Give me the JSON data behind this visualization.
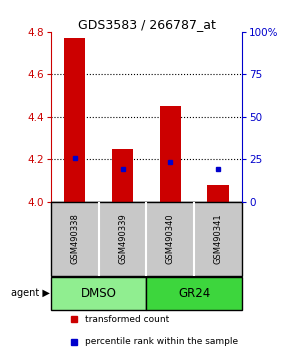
{
  "title": "GDS3583 / 266787_at",
  "samples": [
    "GSM490338",
    "GSM490339",
    "GSM490340",
    "GSM490341"
  ],
  "group_colors": [
    "#90EE90",
    "#3DD63D"
  ],
  "bar_base": 4.0,
  "bar_tops": [
    4.77,
    4.25,
    4.45,
    4.08
  ],
  "blue_dot_values": [
    4.205,
    4.155,
    4.185,
    4.155
  ],
  "ylim": [
    4.0,
    4.8
  ],
  "left_yticks": [
    4.0,
    4.2,
    4.4,
    4.6,
    4.8
  ],
  "right_yticks": [
    0,
    25,
    50,
    75,
    100
  ],
  "right_ylim": [
    0,
    100
  ],
  "bar_color": "#CC0000",
  "dot_color": "#0000CC",
  "left_tick_color": "#CC0000",
  "right_tick_color": "#0000CC",
  "sample_box_color": "#C8C8C8",
  "legend_red_label": "transformed count",
  "legend_blue_label": "percentile rank within the sample",
  "agent_label": "agent"
}
